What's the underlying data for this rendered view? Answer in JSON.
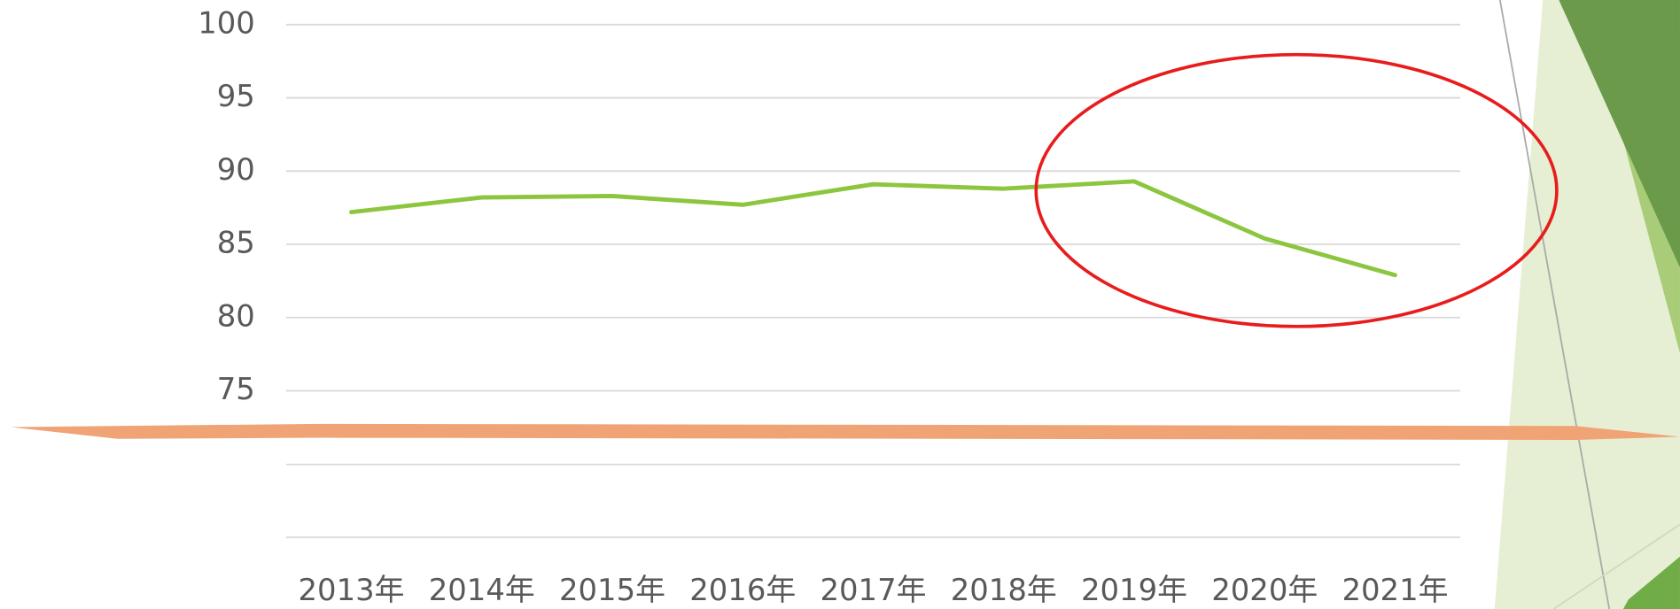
{
  "chart_data": {
    "type": "line",
    "categories": [
      "2013年",
      "2014年",
      "2015年",
      "2016年",
      "2017年",
      "2018年",
      "2019年",
      "2020年",
      "2021年"
    ],
    "series": [
      {
        "color": "#8cc63f",
        "values": [
          87.2,
          88.2,
          88.3,
          87.7,
          89.1,
          88.8,
          89.3,
          85.4,
          82.9
        ]
      }
    ],
    "ylim": [
      65,
      100
    ],
    "yticks": [
      75,
      80,
      85,
      90,
      95,
      100
    ],
    "grid": true
  }
}
